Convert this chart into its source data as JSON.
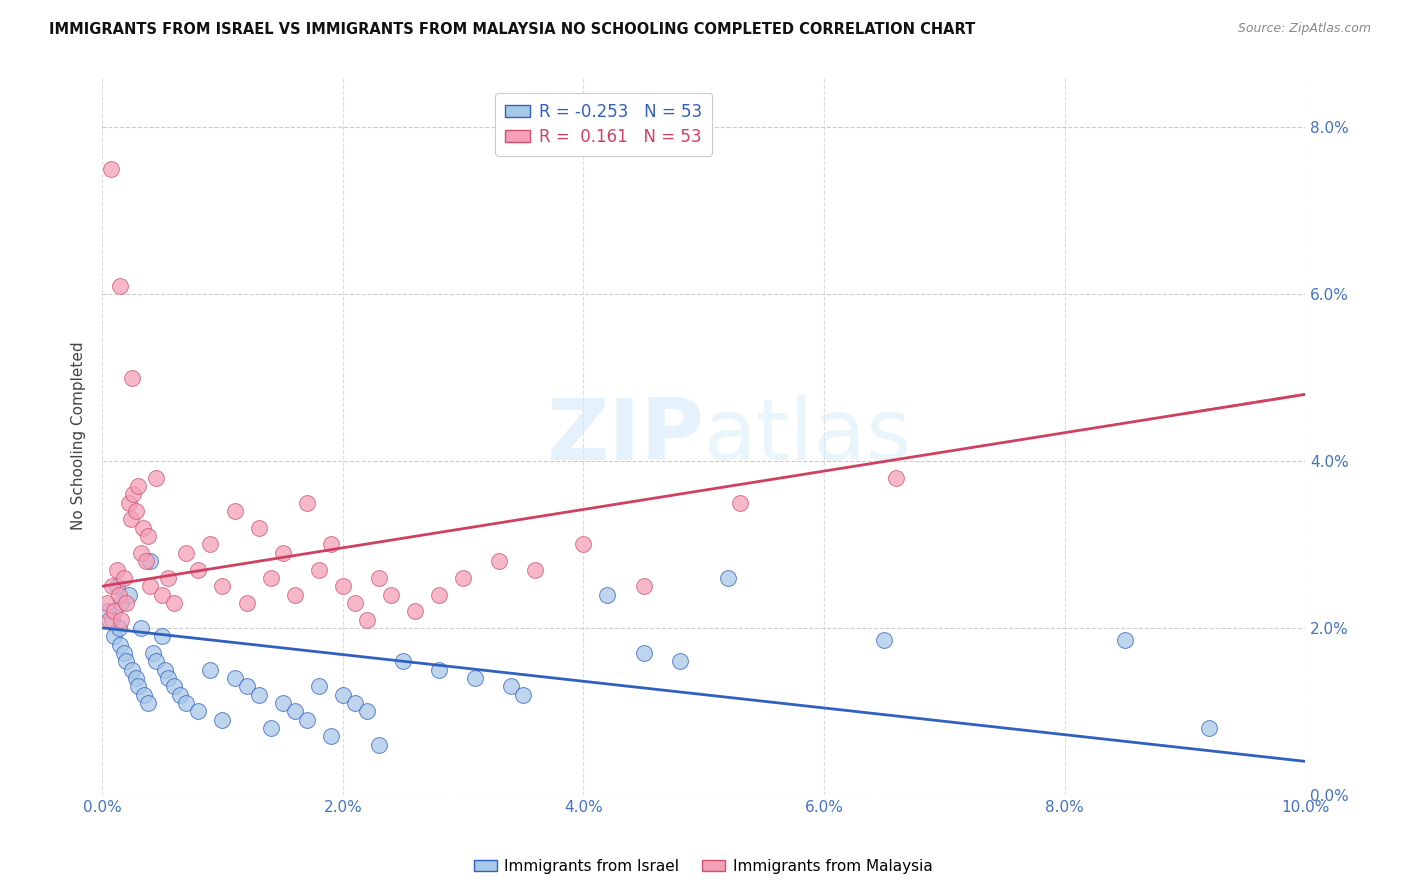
{
  "title": "IMMIGRANTS FROM ISRAEL VS IMMIGRANTS FROM MALAYSIA NO SCHOOLING COMPLETED CORRELATION CHART",
  "source": "Source: ZipAtlas.com",
  "ylabel": "No Schooling Completed",
  "xlim": [
    0.0,
    10.0
  ],
  "ylim": [
    0.0,
    8.6
  ],
  "legend_r_israel": "-0.253",
  "legend_n_israel": "53",
  "legend_r_malaysia": " 0.161",
  "legend_n_malaysia": "53",
  "color_israel": "#a8c8e8",
  "color_malaysia": "#f4a0b8",
  "trendline_israel": "#3060c0",
  "trendline_malaysia": "#d04060",
  "watermark_color": "#d0e8f8",
  "israel_x": [
    0.05,
    0.08,
    0.1,
    0.12,
    0.14,
    0.15,
    0.16,
    0.18,
    0.2,
    0.22,
    0.25,
    0.28,
    0.3,
    0.32,
    0.35,
    0.38,
    0.4,
    0.42,
    0.45,
    0.5,
    0.52,
    0.55,
    0.6,
    0.65,
    0.7,
    0.8,
    0.9,
    1.0,
    1.1,
    1.2,
    1.3,
    1.4,
    1.5,
    1.6,
    1.7,
    1.8,
    1.9,
    2.0,
    2.1,
    2.2,
    2.3,
    2.5,
    2.8,
    3.1,
    3.4,
    3.5,
    4.2,
    4.5,
    4.8,
    5.2,
    6.5,
    8.5,
    9.2
  ],
  "israel_y": [
    2.2,
    2.1,
    1.9,
    2.5,
    2.0,
    1.8,
    2.3,
    1.7,
    1.6,
    2.4,
    1.5,
    1.4,
    1.3,
    2.0,
    1.2,
    1.1,
    2.8,
    1.7,
    1.6,
    1.9,
    1.5,
    1.4,
    1.3,
    1.2,
    1.1,
    1.0,
    1.5,
    0.9,
    1.4,
    1.3,
    1.2,
    0.8,
    1.1,
    1.0,
    0.9,
    1.3,
    0.7,
    1.2,
    1.1,
    1.0,
    0.6,
    1.6,
    1.5,
    1.4,
    1.3,
    1.2,
    2.4,
    1.7,
    1.6,
    2.6,
    1.85,
    1.85,
    0.8
  ],
  "malaysia_x": [
    0.04,
    0.06,
    0.08,
    0.1,
    0.12,
    0.14,
    0.16,
    0.18,
    0.2,
    0.22,
    0.24,
    0.26,
    0.28,
    0.3,
    0.32,
    0.34,
    0.36,
    0.38,
    0.4,
    0.45,
    0.5,
    0.55,
    0.6,
    0.7,
    0.8,
    0.9,
    1.0,
    1.1,
    1.2,
    1.3,
    1.4,
    1.5,
    1.6,
    1.7,
    1.8,
    1.9,
    2.0,
    2.1,
    2.2,
    2.3,
    2.4,
    2.6,
    2.8,
    3.0,
    3.3,
    3.6,
    4.0,
    4.5,
    5.3,
    6.6,
    0.07,
    0.15,
    0.25
  ],
  "malaysia_y": [
    2.3,
    2.1,
    2.5,
    2.2,
    2.7,
    2.4,
    2.1,
    2.6,
    2.3,
    3.5,
    3.3,
    3.6,
    3.4,
    3.7,
    2.9,
    3.2,
    2.8,
    3.1,
    2.5,
    3.8,
    2.4,
    2.6,
    2.3,
    2.9,
    2.7,
    3.0,
    2.5,
    3.4,
    2.3,
    3.2,
    2.6,
    2.9,
    2.4,
    3.5,
    2.7,
    3.0,
    2.5,
    2.3,
    2.1,
    2.6,
    2.4,
    2.2,
    2.4,
    2.6,
    2.8,
    2.7,
    3.0,
    2.5,
    3.5,
    3.8,
    7.5,
    6.1,
    5.0
  ],
  "x_ticks": [
    0.0,
    2.0,
    4.0,
    6.0,
    8.0,
    10.0
  ],
  "y_ticks": [
    0.0,
    2.0,
    4.0,
    6.0,
    8.0
  ]
}
